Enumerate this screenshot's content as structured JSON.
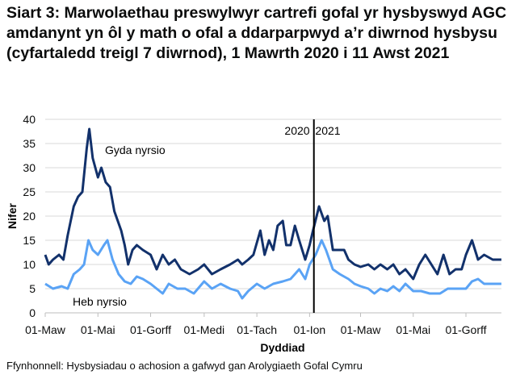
{
  "chart_data": {
    "type": "line",
    "title": "Siart 3: Marwolaethau preswylwyr cartrefi gofal yr hysbyswyd AGC amdanynt yn ôl y math o ofal a ddarparpwyd a’r diwrnod hysbysu (cyfartaledd treigl 7 diwrnod), 1 Mawrth 2020 i 11 Awst 2021",
    "xlabel": "Dyddiad",
    "ylabel": "Nifer",
    "ylim": [
      0,
      40
    ],
    "yticks": [
      0,
      5,
      10,
      15,
      20,
      25,
      30,
      35,
      40
    ],
    "xlim": [
      "2020-03-01",
      "2021-08-11"
    ],
    "xticks": [
      {
        "date": "2020-03-01",
        "label": "01-Maw"
      },
      {
        "date": "2020-05-01",
        "label": "01-Mai"
      },
      {
        "date": "2020-07-01",
        "label": "01-Gorff"
      },
      {
        "date": "2020-09-01",
        "label": "01-Medi"
      },
      {
        "date": "2020-11-01",
        "label": "01-Tach"
      },
      {
        "date": "2021-01-01",
        "label": "01-Ion"
      },
      {
        "date": "2021-03-01",
        "label": "01-Maw"
      },
      {
        "date": "2021-05-01",
        "label": "01-Mai"
      },
      {
        "date": "2021-07-01",
        "label": "01-Gorff"
      }
    ],
    "grid": true,
    "annotations": {
      "year_divider": "2021-01-06",
      "left_year": "2020",
      "right_year": "2021"
    },
    "series": [
      {
        "name": "Gyda nyrsio",
        "color": "#12316b",
        "points": [
          [
            "2020-03-01",
            12
          ],
          [
            "2020-03-05",
            10
          ],
          [
            "2020-03-10",
            11
          ],
          [
            "2020-03-17",
            12
          ],
          [
            "2020-03-22",
            11
          ],
          [
            "2020-03-27",
            16
          ],
          [
            "2020-04-03",
            22
          ],
          [
            "2020-04-08",
            24
          ],
          [
            "2020-04-13",
            25
          ],
          [
            "2020-04-18",
            34
          ],
          [
            "2020-04-21",
            38
          ],
          [
            "2020-04-25",
            32
          ],
          [
            "2020-05-01",
            28
          ],
          [
            "2020-05-05",
            30
          ],
          [
            "2020-05-10",
            27
          ],
          [
            "2020-05-15",
            26
          ],
          [
            "2020-05-20",
            21
          ],
          [
            "2020-05-28",
            17
          ],
          [
            "2020-06-01",
            14
          ],
          [
            "2020-06-05",
            10
          ],
          [
            "2020-06-10",
            13
          ],
          [
            "2020-06-15",
            14
          ],
          [
            "2020-06-22",
            13
          ],
          [
            "2020-07-01",
            12
          ],
          [
            "2020-07-08",
            9
          ],
          [
            "2020-07-15",
            12
          ],
          [
            "2020-07-22",
            10
          ],
          [
            "2020-07-29",
            11
          ],
          [
            "2020-08-05",
            9
          ],
          [
            "2020-08-15",
            8
          ],
          [
            "2020-08-25",
            9
          ],
          [
            "2020-09-01",
            10
          ],
          [
            "2020-09-10",
            8
          ],
          [
            "2020-09-20",
            9
          ],
          [
            "2020-10-01",
            10
          ],
          [
            "2020-10-10",
            11
          ],
          [
            "2020-10-15",
            10
          ],
          [
            "2020-10-22",
            11
          ],
          [
            "2020-10-28",
            12
          ],
          [
            "2020-11-05",
            17
          ],
          [
            "2020-11-10",
            12
          ],
          [
            "2020-11-15",
            15
          ],
          [
            "2020-11-20",
            13
          ],
          [
            "2020-11-25",
            18
          ],
          [
            "2020-12-01",
            19
          ],
          [
            "2020-12-05",
            14
          ],
          [
            "2020-12-10",
            14
          ],
          [
            "2020-12-15",
            18
          ],
          [
            "2020-12-20",
            15
          ],
          [
            "2020-12-27",
            11
          ],
          [
            "2021-01-01",
            14
          ],
          [
            "2021-01-05",
            17
          ],
          [
            "2021-01-12",
            22
          ],
          [
            "2021-01-18",
            19
          ],
          [
            "2021-01-22",
            20
          ],
          [
            "2021-01-28",
            13
          ],
          [
            "2021-02-03",
            13
          ],
          [
            "2021-02-10",
            13
          ],
          [
            "2021-02-15",
            11
          ],
          [
            "2021-02-22",
            10
          ],
          [
            "2021-03-01",
            9.5
          ],
          [
            "2021-03-10",
            10
          ],
          [
            "2021-03-17",
            9
          ],
          [
            "2021-03-24",
            10
          ],
          [
            "2021-04-01",
            9
          ],
          [
            "2021-04-08",
            10
          ],
          [
            "2021-04-15",
            8
          ],
          [
            "2021-04-22",
            9
          ],
          [
            "2021-05-01",
            7
          ],
          [
            "2021-05-08",
            10
          ],
          [
            "2021-05-15",
            12
          ],
          [
            "2021-05-22",
            10
          ],
          [
            "2021-05-29",
            8
          ],
          [
            "2021-06-05",
            12
          ],
          [
            "2021-06-12",
            8
          ],
          [
            "2021-06-19",
            9
          ],
          [
            "2021-06-26",
            9
          ],
          [
            "2021-07-01",
            12
          ],
          [
            "2021-07-08",
            15
          ],
          [
            "2021-07-15",
            11
          ],
          [
            "2021-07-22",
            12
          ],
          [
            "2021-08-01",
            11
          ],
          [
            "2021-08-11",
            11
          ]
        ]
      },
      {
        "name": "Heb nyrsio",
        "color": "#5aa3f5",
        "points": [
          [
            "2020-03-01",
            6
          ],
          [
            "2020-03-10",
            5
          ],
          [
            "2020-03-20",
            5.5
          ],
          [
            "2020-03-27",
            5
          ],
          [
            "2020-04-03",
            8
          ],
          [
            "2020-04-10",
            9
          ],
          [
            "2020-04-15",
            10
          ],
          [
            "2020-04-20",
            15
          ],
          [
            "2020-04-25",
            13
          ],
          [
            "2020-05-01",
            12
          ],
          [
            "2020-05-08",
            14
          ],
          [
            "2020-05-12",
            15
          ],
          [
            "2020-05-18",
            11
          ],
          [
            "2020-05-25",
            8
          ],
          [
            "2020-06-01",
            6.5
          ],
          [
            "2020-06-08",
            6
          ],
          [
            "2020-06-15",
            7.5
          ],
          [
            "2020-06-22",
            7
          ],
          [
            "2020-07-01",
            6
          ],
          [
            "2020-07-08",
            5
          ],
          [
            "2020-07-15",
            4
          ],
          [
            "2020-07-22",
            6
          ],
          [
            "2020-08-01",
            5
          ],
          [
            "2020-08-10",
            5
          ],
          [
            "2020-08-20",
            4
          ],
          [
            "2020-09-01",
            6.5
          ],
          [
            "2020-09-10",
            5
          ],
          [
            "2020-09-20",
            6
          ],
          [
            "2020-10-01",
            5
          ],
          [
            "2020-10-10",
            4.5
          ],
          [
            "2020-10-15",
            3
          ],
          [
            "2020-10-22",
            4.5
          ],
          [
            "2020-11-01",
            6
          ],
          [
            "2020-11-10",
            5
          ],
          [
            "2020-11-20",
            6
          ],
          [
            "2020-12-01",
            6.5
          ],
          [
            "2020-12-10",
            7
          ],
          [
            "2020-12-15",
            8
          ],
          [
            "2020-12-20",
            9
          ],
          [
            "2020-12-27",
            7
          ],
          [
            "2021-01-01",
            10
          ],
          [
            "2021-01-08",
            12
          ],
          [
            "2021-01-15",
            15
          ],
          [
            "2021-01-20",
            13
          ],
          [
            "2021-01-28",
            9
          ],
          [
            "2021-02-05",
            8
          ],
          [
            "2021-02-15",
            7
          ],
          [
            "2021-02-22",
            6
          ],
          [
            "2021-03-01",
            5.5
          ],
          [
            "2021-03-10",
            5
          ],
          [
            "2021-03-17",
            4
          ],
          [
            "2021-03-24",
            5
          ],
          [
            "2021-04-01",
            4.5
          ],
          [
            "2021-04-08",
            5.5
          ],
          [
            "2021-04-15",
            4.5
          ],
          [
            "2021-04-22",
            6
          ],
          [
            "2021-05-01",
            4.5
          ],
          [
            "2021-05-10",
            4.5
          ],
          [
            "2021-05-20",
            4
          ],
          [
            "2021-06-01",
            4
          ],
          [
            "2021-06-10",
            5
          ],
          [
            "2021-06-20",
            5
          ],
          [
            "2021-07-01",
            5
          ],
          [
            "2021-07-08",
            6.5
          ],
          [
            "2021-07-15",
            7
          ],
          [
            "2021-07-22",
            6
          ],
          [
            "2021-08-01",
            6
          ],
          [
            "2021-08-11",
            6
          ]
        ]
      }
    ]
  },
  "source": "Ffynhonnell: Hysbysiadau o achosion a gafwyd gan Arolygiaeth Gofal Cymru"
}
